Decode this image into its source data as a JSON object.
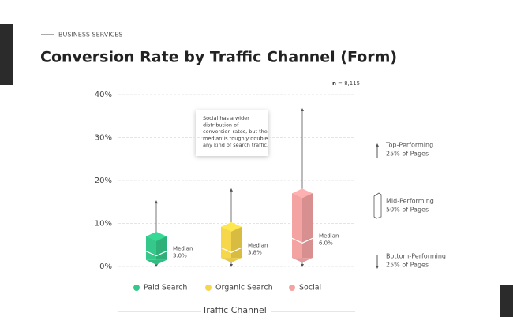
{
  "kicker": "BUSINESS SERVICES",
  "chart_data": {
    "type": "box",
    "title": "Conversion Rate by Traffic Channel (Form)",
    "sample_note": {
      "symbol": "n",
      "text": "= 8,115"
    },
    "ylim": [
      0,
      40
    ],
    "yticks": [
      {
        "value": 0,
        "label": "0%"
      },
      {
        "value": 10,
        "label": "10%"
      },
      {
        "value": 20,
        "label": "20%"
      },
      {
        "value": 30,
        "label": "30%"
      },
      {
        "value": 40,
        "label": "40%"
      }
    ],
    "grid": true,
    "categories": [
      "Paid Search",
      "Organic Search",
      "Social"
    ],
    "median_label": "Median",
    "series": [
      {
        "name": "Paid Search",
        "color": "#34c98a",
        "min": 0,
        "q1": 1.5,
        "median": 3.0,
        "q3": 7.0,
        "max": 15.2,
        "median_value_label": "3.0%"
      },
      {
        "name": "Organic Search",
        "color": "#f6d64a",
        "min": 0,
        "q1": 2.0,
        "median": 3.8,
        "q3": 9.2,
        "max": 18.0,
        "median_value_label": "3.8%"
      },
      {
        "name": "Social",
        "color": "#f4a3a3",
        "min": 0,
        "q1": 2.0,
        "median": 6.0,
        "q3": 17.0,
        "max": 36.7,
        "median_value_label": "6.0%"
      }
    ],
    "annotation": [
      "Social has a wider",
      "distribution of",
      "conversion rates, but the",
      "median is roughly double",
      "any kind of search traffic."
    ],
    "side_legend": [
      [
        "Top-Performing",
        "25% of Pages"
      ],
      [
        "Mid-Performing",
        "50% of Pages"
      ],
      [
        "Bottom-Performing",
        "25% of Pages"
      ]
    ],
    "x_label": "Traffic Channel"
  }
}
